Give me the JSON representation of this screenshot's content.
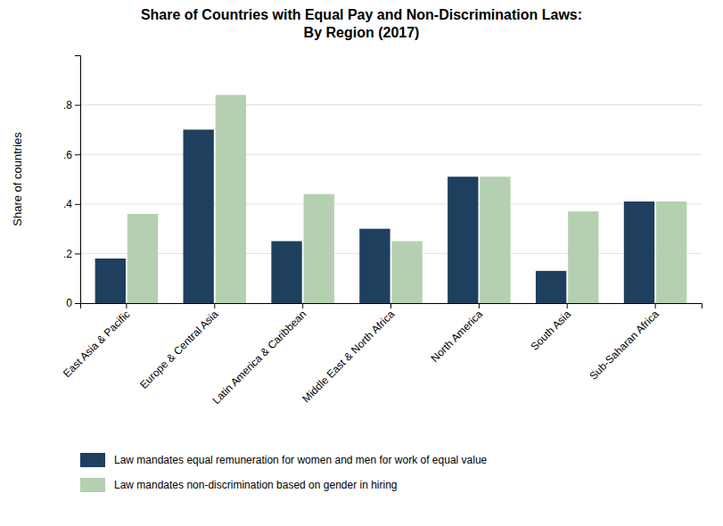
{
  "chart_data": {
    "type": "bar",
    "title": "Share of Countries with Equal Pay and Non-Discrimination Laws:\nBy Region (2017)",
    "y_label": "Share of countries",
    "categories": [
      "East Asia & Pacific",
      "Europe & Central Asia",
      "Latin America & Caribbean",
      "Middle East & North Africa",
      "North America",
      "South Asia",
      "Sub-Saharan Africa"
    ],
    "series": [
      {
        "name": "Law mandates equal remuneration for women and men for work of equal value",
        "color": "#1f3f5e",
        "values": [
          0.18,
          0.7,
          0.25,
          0.3,
          0.51,
          0.13,
          0.41
        ]
      },
      {
        "name": "Law mandates non-discrimination based on gender in hiring",
        "color": "#b5d0b0",
        "values": [
          0.36,
          0.84,
          0.44,
          0.25,
          0.51,
          0.37,
          0.41
        ]
      }
    ],
    "ylim": [
      0,
      1.0
    ],
    "yticks": [
      0,
      {
        "value": 0.2,
        "label": ".2"
      },
      {
        "value": 0.4,
        "label": ".4"
      },
      {
        "value": 0.6,
        "label": ".6"
      },
      {
        "value": 0.8,
        "label": ".8"
      }
    ],
    "grid": true,
    "legend": "bottom"
  }
}
